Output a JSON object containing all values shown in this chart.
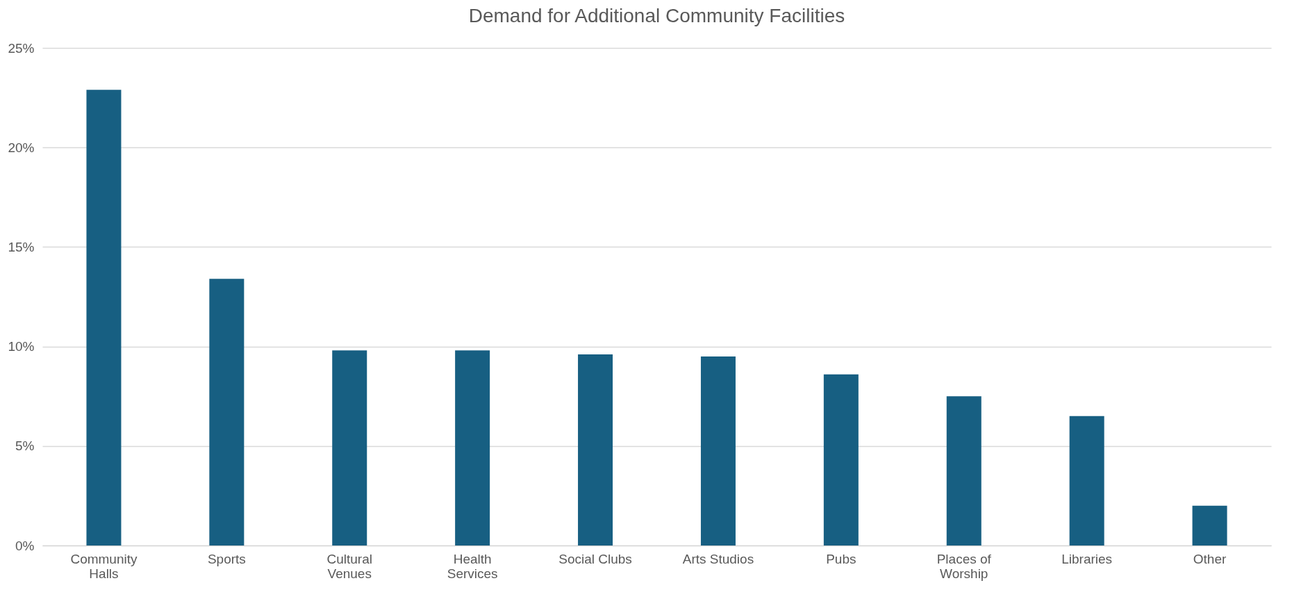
{
  "chart_data": {
    "type": "bar",
    "title": "Demand for Additional Community Facilities",
    "categories": [
      "Community Halls",
      "Sports",
      "Cultural Venues",
      "Health Services",
      "Social Clubs",
      "Arts Studios",
      "Pubs",
      "Places of Worship",
      "Libraries",
      "Other"
    ],
    "values": [
      22.9,
      13.4,
      9.8,
      9.8,
      9.6,
      9.5,
      8.6,
      7.5,
      6.5,
      2.0
    ],
    "color": "#175f82",
    "ylim": [
      0,
      25
    ],
    "yticks": [
      {
        "value": 0,
        "label": "0%"
      },
      {
        "value": 5,
        "label": "5%"
      },
      {
        "value": 10,
        "label": "10%"
      },
      {
        "value": 15,
        "label": "15%"
      },
      {
        "value": 20,
        "label": "20%"
      },
      {
        "value": 25,
        "label": "25%"
      }
    ],
    "grid": "y"
  }
}
